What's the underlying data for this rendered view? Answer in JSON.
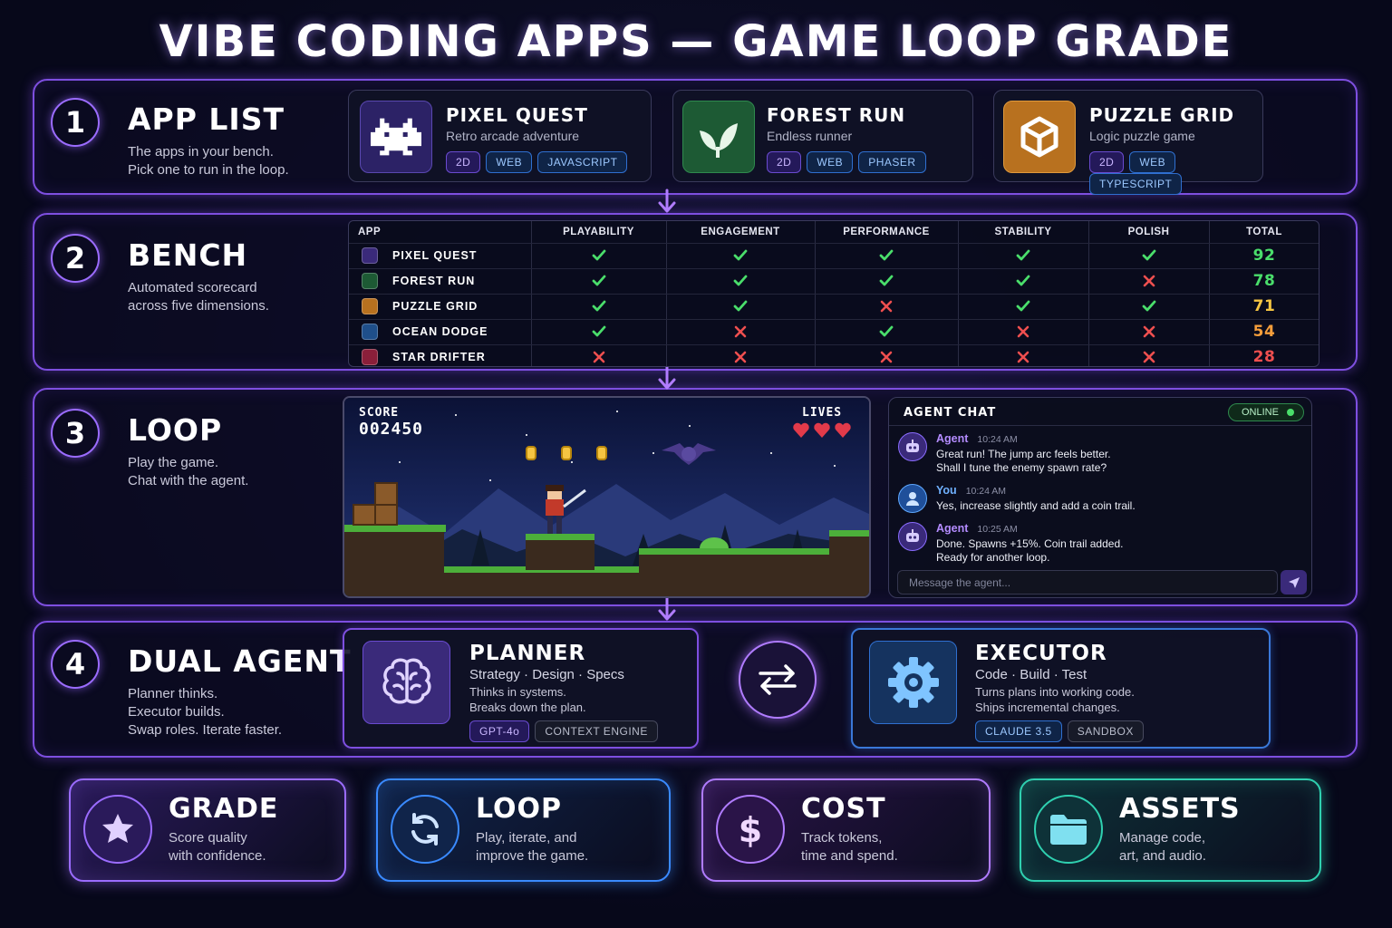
{
  "title": "VIBE CODING APPS — GAME LOOP GRADE",
  "sections": [
    {
      "number": "1",
      "title": "APP LIST",
      "description": [
        "The apps in your bench.",
        "Pick one to run in the loop."
      ]
    },
    {
      "number": "2",
      "title": "BENCH",
      "description": [
        "Automated scorecard",
        "across five dimensions."
      ]
    },
    {
      "number": "3",
      "title": "LOOP",
      "description": [
        "Play the game.",
        "Chat with the agent."
      ]
    },
    {
      "number": "4",
      "title": "DUAL AGENT",
      "description": [
        "Planner thinks.",
        "Executor builds.",
        "Swap roles. Iterate faster."
      ]
    }
  ],
  "apps": [
    {
      "name": "PIXEL QUEST",
      "subtitle": "Retro arcade adventure",
      "tags": [
        "2D",
        "WEB",
        "JAVASCRIPT"
      ]
    },
    {
      "name": "FOREST RUN",
      "subtitle": "Endless runner",
      "tags": [
        "2D",
        "WEB",
        "PHASER"
      ]
    },
    {
      "name": "PUZZLE GRID",
      "subtitle": "Logic puzzle game",
      "tags": [
        "2D",
        "WEB",
        "TYPESCRIPT"
      ]
    }
  ],
  "bench": {
    "columns": [
      "APP",
      "PLAYABILITY",
      "ENGAGEMENT",
      "PERFORMANCE",
      "STABILITY",
      "POLISH",
      "TOTAL"
    ],
    "rows": [
      {
        "app": "PIXEL QUEST",
        "checks": [
          true,
          true,
          true,
          true,
          true
        ],
        "total": 92,
        "color": "#4ade6b"
      },
      {
        "app": "FOREST RUN",
        "checks": [
          true,
          true,
          true,
          true,
          false
        ],
        "total": 78,
        "color": "#4ade6b"
      },
      {
        "app": "PUZZLE GRID",
        "checks": [
          true,
          true,
          false,
          true,
          true
        ],
        "total": 71,
        "color": "#f5c542"
      },
      {
        "app": "OCEAN DODGE",
        "checks": [
          true,
          false,
          true,
          false,
          false
        ],
        "total": 54,
        "color": "#f59e3b"
      },
      {
        "app": "STAR DRIFTER",
        "checks": [
          false,
          false,
          false,
          false,
          false
        ],
        "total": 28,
        "color": "#ef4f4f"
      }
    ]
  },
  "game": {
    "score_label": "SCORE",
    "score": "002450",
    "lives_label": "LIVES"
  },
  "chat": {
    "title": "AGENT CHAT",
    "status": "ONLINE",
    "messages": [
      {
        "sender": "Agent",
        "time": "10:24 AM",
        "lines": [
          "Great run! The jump arc feels better.",
          "Shall I tune the enemy spawn rate?"
        ]
      },
      {
        "sender": "You",
        "time": "10:24 AM",
        "lines": [
          "Yes, increase slightly and add a coin trail."
        ]
      },
      {
        "sender": "Agent",
        "time": "10:25 AM",
        "lines": [
          "Done. Spawns +15%. Coin trail added.",
          "Ready for another loop."
        ]
      }
    ],
    "input_placeholder": "Message the agent..."
  },
  "agents": [
    {
      "name": "PLANNER",
      "subtitle": "Strategy · Design · Specs",
      "lines": [
        "Thinks in systems.",
        "Breaks down the plan."
      ],
      "tags": [
        "GPT-4o",
        "CONTEXT ENGINE"
      ]
    },
    {
      "name": "EXECUTOR",
      "subtitle": "Code · Build · Test",
      "lines": [
        "Turns plans into working code.",
        "Ships incremental changes."
      ],
      "tags": [
        "CLAUDE 3.5",
        "SANDBOX"
      ]
    }
  ],
  "features": [
    {
      "title": "GRADE",
      "lines": [
        "Score quality",
        "with confidence."
      ]
    },
    {
      "title": "LOOP",
      "lines": [
        "Play, iterate, and",
        "improve the game."
      ]
    },
    {
      "title": "COST",
      "lines": [
        "Track tokens,",
        "time and spend."
      ]
    },
    {
      "title": "ASSETS",
      "lines": [
        "Manage code,",
        "art, and audio."
      ]
    }
  ]
}
